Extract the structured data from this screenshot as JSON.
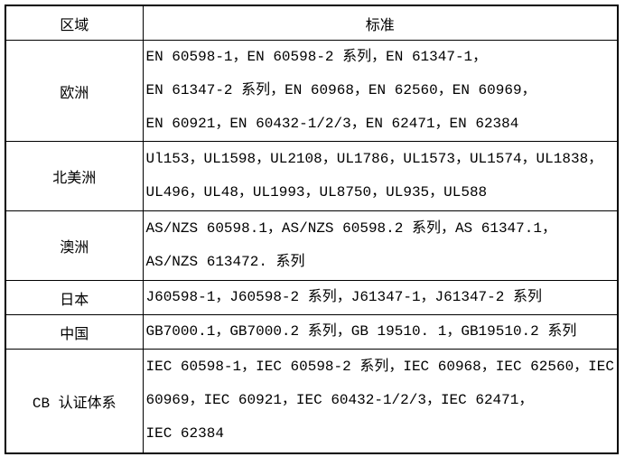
{
  "table": {
    "headers": {
      "region": "区域",
      "standard": "标准"
    },
    "rows": [
      {
        "region": "欧洲",
        "lines": [
          "EN 60598-1，EN 60598-2 系列，EN 61347-1，",
          "EN 61347-2 系列，EN 60968，EN 62560，EN 60969，",
          "EN 60921，EN 60432-1/2/3，EN 62471，EN 62384"
        ]
      },
      {
        "region": "北美洲",
        "lines": [
          "Ul153，UL1598，UL2108，UL1786，UL1573，UL1574，UL1838，",
          "UL496，UL48，UL1993，UL8750，UL935，UL588"
        ]
      },
      {
        "region": "澳洲",
        "lines": [
          "AS/NZS 60598.1，AS/NZS 60598.2 系列，AS 61347.1，",
          "AS/NZS 613472. 系列"
        ]
      },
      {
        "region": "日本",
        "lines": [
          "J60598-1，J60598-2 系列，J61347-1，J61347-2 系列"
        ]
      },
      {
        "region": "中国",
        "lines": [
          "GB7000.1，GB7000.2 系列，GB 19510. 1，GB19510.2 系列"
        ]
      },
      {
        "region": "CB 认证体系",
        "lines": [
          "IEC 60598-1，IEC 60598-2 系列，IEC 60968，IEC 62560，IEC",
          "60969，IEC 60921，IEC 60432-1/2/3，IEC 62471，",
          "IEC 62384"
        ]
      }
    ],
    "colors": {
      "border": "#000000",
      "text": "#000000",
      "background": "#ffffff"
    }
  }
}
